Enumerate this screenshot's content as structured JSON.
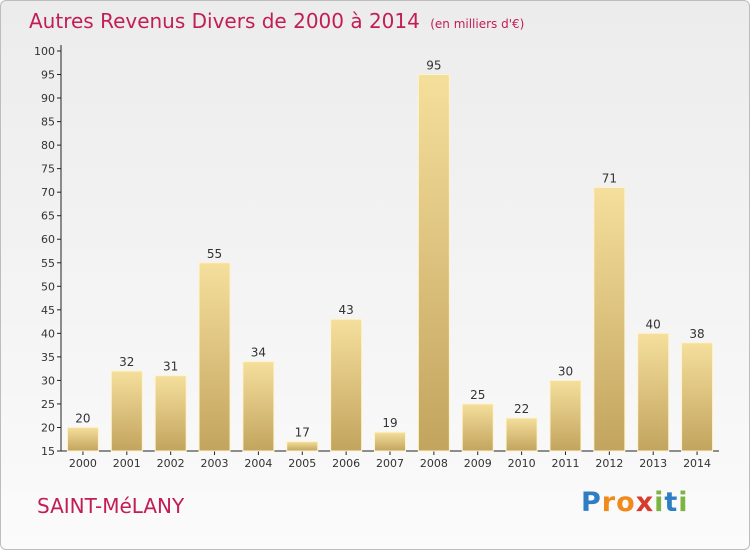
{
  "chart_data": {
    "type": "bar",
    "title": "Autres Revenus Divers de 2000 à 2014",
    "subtitle": "(en milliers d'€)",
    "categories": [
      "2000",
      "2001",
      "2002",
      "2003",
      "2004",
      "2005",
      "2006",
      "2007",
      "2008",
      "2009",
      "2010",
      "2011",
      "2012",
      "2013",
      "2014"
    ],
    "values": [
      20,
      32,
      31,
      55,
      34,
      17,
      43,
      19,
      95,
      25,
      22,
      30,
      71,
      40,
      38
    ],
    "ylim": [
      15,
      100
    ],
    "yticks": [
      15,
      20,
      25,
      30,
      35,
      40,
      45,
      50,
      55,
      60,
      65,
      70,
      75,
      80,
      85,
      90,
      95,
      100
    ],
    "grid": false,
    "bar_color_light": "#f5df9c",
    "bar_color_dark": "#c2a45e"
  },
  "location": "SAINT-MéLANY",
  "brand": {
    "letters": [
      "P",
      "r",
      "o",
      "x",
      "i",
      "t",
      "i"
    ],
    "colors": [
      "#2f7ec4",
      "#f08a1c",
      "#f08a1c",
      "#d93a2b",
      "#7cb342",
      "#2f7ec4",
      "#7cb342"
    ]
  },
  "colors": {
    "title": "#c21d55",
    "axis": "#222222"
  }
}
